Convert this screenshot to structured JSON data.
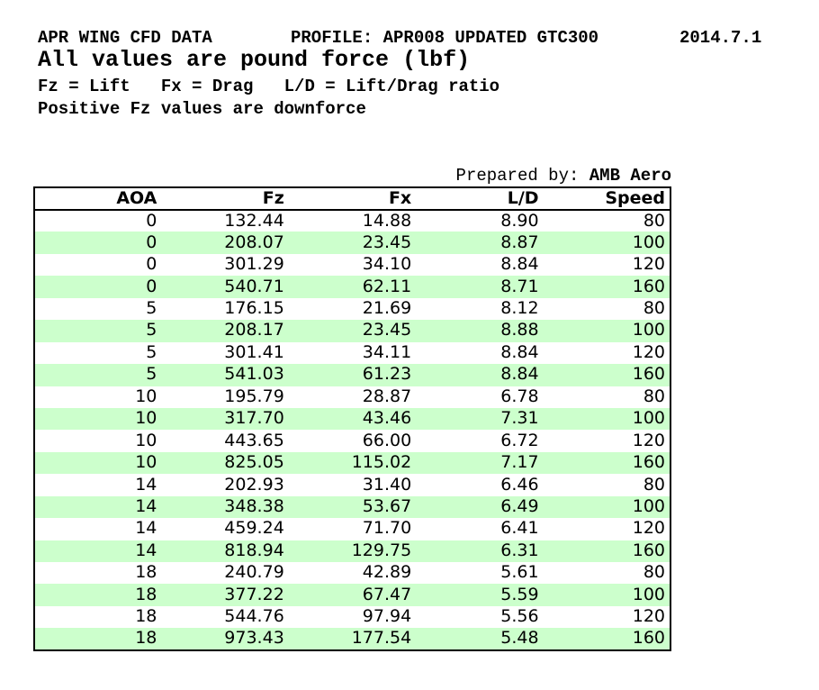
{
  "header": {
    "title": "APR WING CFD DATA",
    "profile": "PROFILE: APR008 UPDATED GTC300",
    "date": "2014.7.1",
    "subtitle": "All values are pound force (lbf)",
    "legend": "Fz = Lift   Fx = Drag   L/D = Lift/Drag ratio",
    "note": "Positive Fz values are downforce"
  },
  "prepared_by": {
    "label": "Prepared by:",
    "value": "AMB Aero"
  },
  "table": {
    "columns": [
      "AOA",
      "Fz",
      "Fx",
      "L/D",
      "Speed"
    ],
    "rows": [
      [
        "0",
        "132.44",
        "14.88",
        "8.90",
        "80"
      ],
      [
        "0",
        "208.07",
        "23.45",
        "8.87",
        "100"
      ],
      [
        "0",
        "301.29",
        "34.10",
        "8.84",
        "120"
      ],
      [
        "0",
        "540.71",
        "62.11",
        "8.71",
        "160"
      ],
      [
        "5",
        "176.15",
        "21.69",
        "8.12",
        "80"
      ],
      [
        "5",
        "208.17",
        "23.45",
        "8.88",
        "100"
      ],
      [
        "5",
        "301.41",
        "34.11",
        "8.84",
        "120"
      ],
      [
        "5",
        "541.03",
        "61.23",
        "8.84",
        "160"
      ],
      [
        "10",
        "195.79",
        "28.87",
        "6.78",
        "80"
      ],
      [
        "10",
        "317.70",
        "43.46",
        "7.31",
        "100"
      ],
      [
        "10",
        "443.65",
        "66.00",
        "6.72",
        "120"
      ],
      [
        "10",
        "825.05",
        "115.02",
        "7.17",
        "160"
      ],
      [
        "14",
        "202.93",
        "31.40",
        "6.46",
        "80"
      ],
      [
        "14",
        "348.38",
        "53.67",
        "6.49",
        "100"
      ],
      [
        "14",
        "459.24",
        "71.70",
        "6.41",
        "120"
      ],
      [
        "14",
        "818.94",
        "129.75",
        "6.31",
        "160"
      ],
      [
        "18",
        "240.79",
        "42.89",
        "5.61",
        "80"
      ],
      [
        "18",
        "377.22",
        "67.47",
        "5.59",
        "100"
      ],
      [
        "18",
        "544.76",
        "97.94",
        "5.56",
        "120"
      ],
      [
        "18",
        "973.43",
        "177.54",
        "5.48",
        "160"
      ]
    ]
  },
  "colors": {
    "stripe_green": "#ccffcc",
    "table_border": "#000000",
    "text": "#000000",
    "background": "#ffffff"
  }
}
